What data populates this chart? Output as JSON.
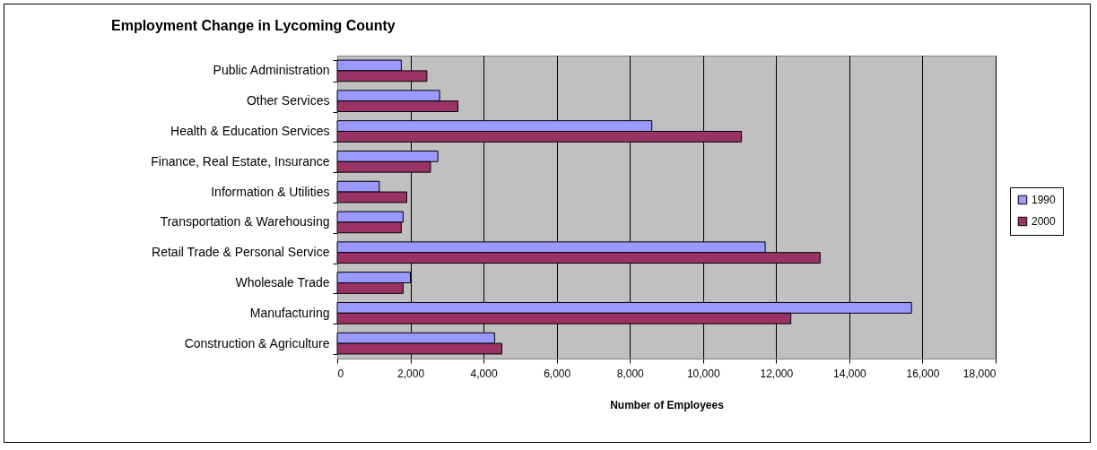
{
  "chart_data": {
    "type": "bar",
    "orientation": "horizontal",
    "title": "Employment Change in Lycoming County",
    "xlabel": "Number of Employees",
    "categories": [
      "Public Administration",
      "Other Services",
      "Health & Education Services",
      "Finance, Real Estate, Insurance",
      "Information & Utilities",
      "Transportation & Warehousing",
      "Retail Trade & Personal Service",
      "Wholesale Trade",
      "Manufacturing",
      "Construction & Agriculture"
    ],
    "series": [
      {
        "name": "1990",
        "color": "#9999ff",
        "values": [
          1750,
          2800,
          8600,
          2750,
          1150,
          1800,
          11700,
          2000,
          15700,
          4300
        ]
      },
      {
        "name": "2000",
        "color": "#993366",
        "values": [
          2450,
          3300,
          11050,
          2550,
          1900,
          1750,
          13200,
          1800,
          12400,
          4500
        ]
      }
    ],
    "xlim": [
      0,
      18000
    ],
    "xticks": [
      0,
      {
        "value": 2000,
        "label": "2,000"
      },
      {
        "value": 4000,
        "label": "4,000"
      },
      {
        "value": 6000,
        "label": "6,000"
      },
      {
        "value": 8000,
        "label": "8,000"
      },
      {
        "value": 10000,
        "label": "10,000"
      },
      {
        "value": 12000,
        "label": "12,000"
      },
      {
        "value": 14000,
        "label": "14,000"
      },
      {
        "value": 16000,
        "label": "16,000"
      },
      {
        "value": 18000,
        "label": "18,000"
      }
    ],
    "grid": "x",
    "legend": "right"
  }
}
